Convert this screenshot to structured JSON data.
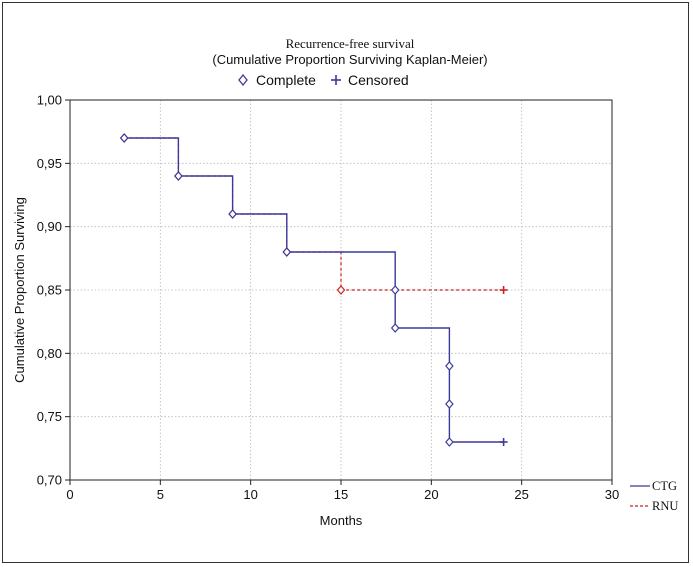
{
  "chart_data": {
    "type": "line",
    "title": "Recurrence-free survival",
    "subtitle": "(Cumulative Proportion Surviving Kaplan-Meier)",
    "xlabel": "Months",
    "ylabel": "Cumulative Proportion Surviving",
    "xlim": [
      0,
      30
    ],
    "ylim": [
      0.7,
      1.0
    ],
    "x_ticks": [
      0,
      5,
      10,
      15,
      20,
      25,
      30
    ],
    "x_tick_labels": [
      "0",
      "5",
      "10",
      "15",
      "20",
      "25",
      "30"
    ],
    "y_ticks": [
      0.7,
      0.75,
      0.8,
      0.85,
      0.9,
      0.95,
      1.0
    ],
    "y_tick_labels": [
      "0,70",
      "0,75",
      "0,80",
      "0,85",
      "0,90",
      "0,95",
      "1,00"
    ],
    "grid": true,
    "marker_legend": [
      {
        "label": "Complete",
        "symbol": "◇"
      },
      {
        "label": "Censored",
        "symbol": "+"
      }
    ],
    "legend_position": "bottom-right-outside",
    "series": [
      {
        "name": "CTG",
        "color": "#3a3a9a",
        "line_style": "solid",
        "steps": [
          [
            3,
            0.97
          ],
          [
            6,
            0.94
          ],
          [
            9,
            0.91
          ],
          [
            12,
            0.88
          ],
          [
            18,
            0.82
          ],
          [
            21,
            0.73
          ],
          [
            24,
            0.73
          ]
        ],
        "events": [
          [
            3,
            0.97
          ],
          [
            6,
            0.94
          ],
          [
            9,
            0.91
          ],
          [
            12,
            0.88
          ],
          [
            18,
            0.85
          ],
          [
            18,
            0.82
          ],
          [
            21,
            0.79
          ],
          [
            21,
            0.76
          ],
          [
            21,
            0.73
          ]
        ],
        "censored": [
          [
            24,
            0.73
          ]
        ]
      },
      {
        "name": "RNU",
        "color": "#cc2222",
        "line_style": "dashed",
        "steps": [
          [
            3,
            0.97
          ],
          [
            6,
            0.94
          ],
          [
            9,
            0.91
          ],
          [
            12,
            0.88
          ],
          [
            15,
            0.85
          ],
          [
            24,
            0.85
          ]
        ],
        "events": [
          [
            3,
            0.97
          ],
          [
            6,
            0.94
          ],
          [
            9,
            0.91
          ],
          [
            12,
            0.88
          ],
          [
            15,
            0.85
          ]
        ],
        "censored": [
          [
            24,
            0.85
          ]
        ]
      }
    ]
  }
}
